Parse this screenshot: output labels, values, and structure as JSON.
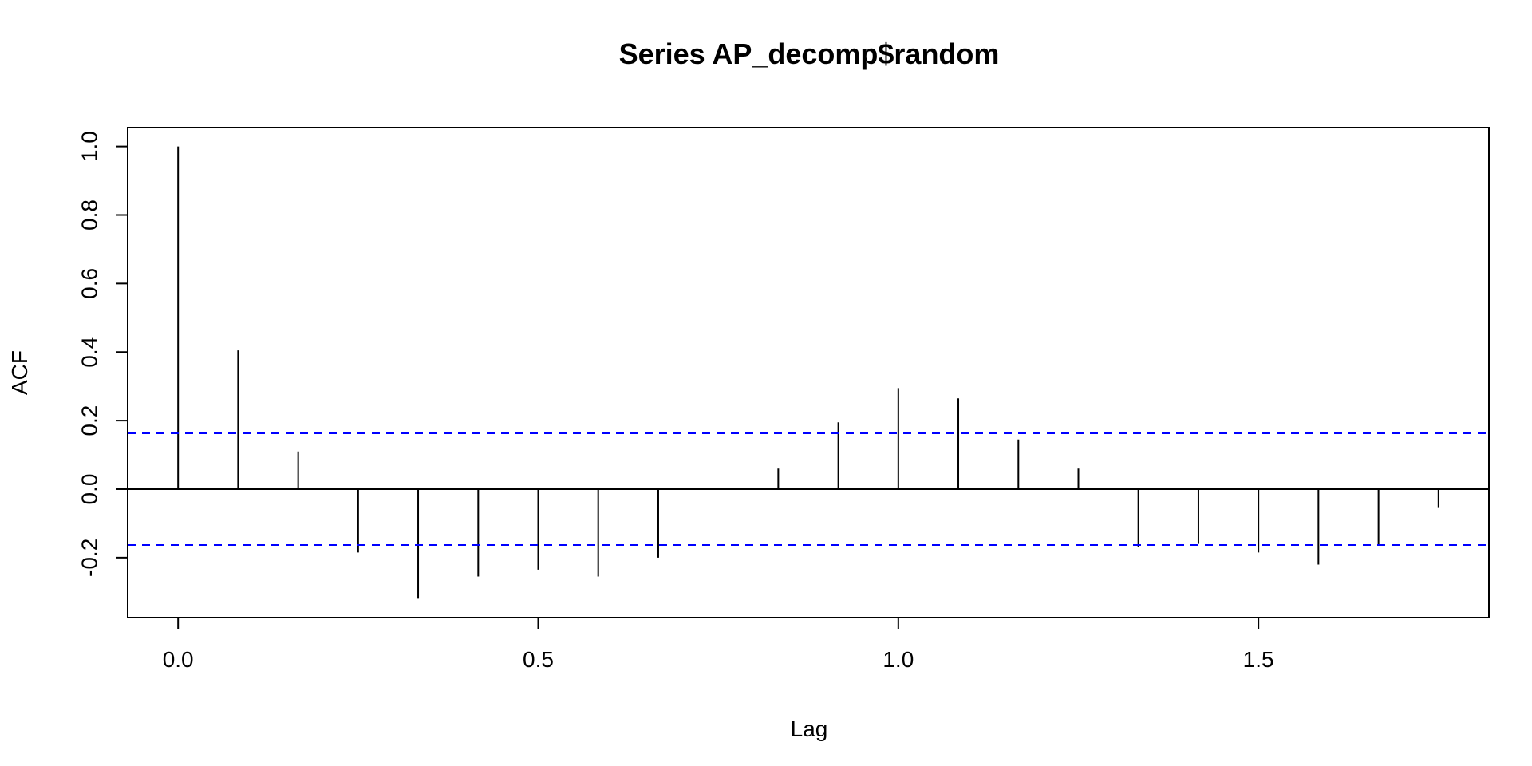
{
  "chart_data": {
    "type": "bar",
    "title": "Series  AP_decomp$random",
    "xlabel": "Lag",
    "ylabel": "ACF",
    "xlim": [
      -0.07,
      1.82
    ],
    "ylim": [
      -0.375,
      1.055
    ],
    "x_ticks": [
      0.0,
      0.5,
      1.0,
      1.5
    ],
    "x_tick_labels": [
      "0.0",
      "0.5",
      "1.0",
      "1.5"
    ],
    "y_ticks": [
      -0.2,
      0.0,
      0.2,
      0.4,
      0.6,
      0.8,
      1.0
    ],
    "y_tick_labels": [
      "-0.2",
      "0.0",
      "0.2",
      "0.4",
      "0.6",
      "0.8",
      "1.0"
    ],
    "lags": [
      0.0,
      0.0833,
      0.1667,
      0.25,
      0.3333,
      0.4167,
      0.5,
      0.5833,
      0.6667,
      0.75,
      0.8333,
      0.9167,
      1.0,
      1.0833,
      1.1667,
      1.25,
      1.3333,
      1.4167,
      1.5,
      1.5833,
      1.6667,
      1.75
    ],
    "acf": [
      1.0,
      0.405,
      0.11,
      -0.185,
      -0.32,
      -0.255,
      -0.235,
      -0.255,
      -0.2,
      0.0,
      0.06,
      0.195,
      0.295,
      0.265,
      0.145,
      0.06,
      -0.17,
      -0.16,
      -0.185,
      -0.22,
      -0.165,
      -0.055
    ],
    "confidence_band": [
      0.163,
      -0.163
    ],
    "colors": {
      "spikes": "#000000",
      "band": "#0000ff",
      "axes": "#000000"
    },
    "grid": false
  }
}
